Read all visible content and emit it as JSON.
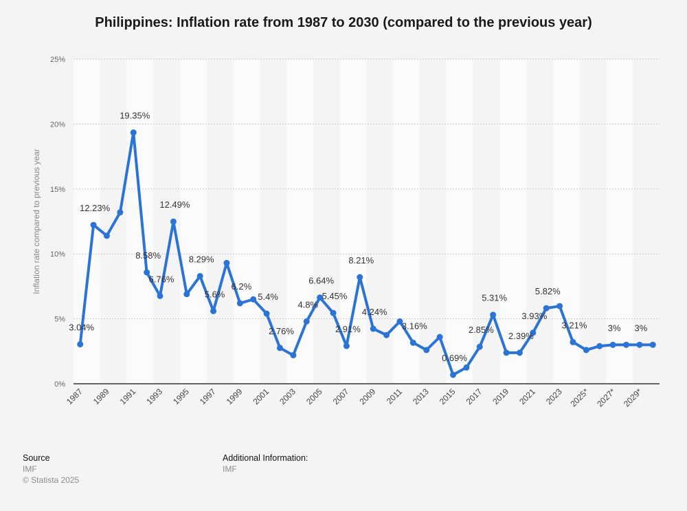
{
  "footer": {
    "source_heading": "Source",
    "source_value": "IMF",
    "copyright": "© Statista 2025",
    "additional_heading": "Additional Information:",
    "additional_value": "IMF"
  },
  "colors": {
    "line": "#2b74d6",
    "background": "#f4f4f4",
    "band": "#fbfbfb",
    "grid": "#c8c8c8",
    "axis": "#333333"
  },
  "chart_data": {
    "type": "line",
    "title": "Philippines: Inflation rate from 1987 to 2030 (compared to the previous year)",
    "ylabel": "Inflation rate compared to previous year",
    "ylim": [
      0,
      25
    ],
    "yticks": [
      "0%",
      "5%",
      "10%",
      "15%",
      "20%",
      "25%"
    ],
    "xtick_labels": [
      "1987",
      "1989",
      "1991",
      "1993",
      "1995",
      "1997",
      "1999",
      "2001",
      "2003",
      "2005",
      "2007",
      "2009",
      "2011",
      "2013",
      "2015",
      "2017",
      "2019",
      "2021",
      "2023",
      "2025*",
      "2027*",
      "2029*"
    ],
    "grid": true,
    "series": [
      {
        "x": [
          1987,
          1988,
          1989,
          1990,
          1991,
          1992,
          1993,
          1994,
          1995,
          1996,
          1997,
          1998,
          1999,
          2000,
          2001,
          2002,
          2003,
          2004,
          2005,
          2006,
          2007,
          2008,
          2009,
          2010,
          2011,
          2012,
          2013,
          2014,
          2015,
          2016,
          2017,
          2018,
          2019,
          2020,
          2021,
          2022,
          2023,
          2024,
          2025,
          2026,
          2027,
          2028,
          2029,
          2030
        ],
        "values": [
          3.04,
          12.23,
          11.4,
          13.2,
          19.35,
          8.58,
          6.76,
          12.49,
          6.9,
          8.29,
          5.6,
          9.3,
          6.2,
          6.5,
          5.4,
          2.76,
          2.2,
          4.8,
          6.64,
          5.45,
          2.91,
          8.21,
          4.24,
          3.75,
          4.8,
          3.16,
          2.6,
          3.6,
          0.69,
          1.25,
          2.85,
          5.31,
          2.39,
          2.39,
          3.93,
          5.82,
          5.98,
          3.21,
          2.6,
          2.9,
          3.0,
          3.0,
          3.0,
          3.0
        ],
        "labels": {
          "1987": "3.04%",
          "1988": "12.23%",
          "1991": "19.35%",
          "1992": "8.58%",
          "1993": "6.76%",
          "1994": "12.49%",
          "1996": "8.29%",
          "1997": "5.6%",
          "1999": "6.2%",
          "2001": "5.4%",
          "2002": "2.76%",
          "2004": "4.8%",
          "2005": "6.64%",
          "2006": "5.45%",
          "2007": "2.91%",
          "2008": "8.21%",
          "2009": "4.24%",
          "2012": "3.16%",
          "2015": "0.69%",
          "2017": "2.85%",
          "2018": "5.31%",
          "2020": "2.39%",
          "2021": "3.93%",
          "2022": "5.82%",
          "2024": "3.21%",
          "2027": "3%",
          "2029": "3%"
        }
      }
    ]
  }
}
